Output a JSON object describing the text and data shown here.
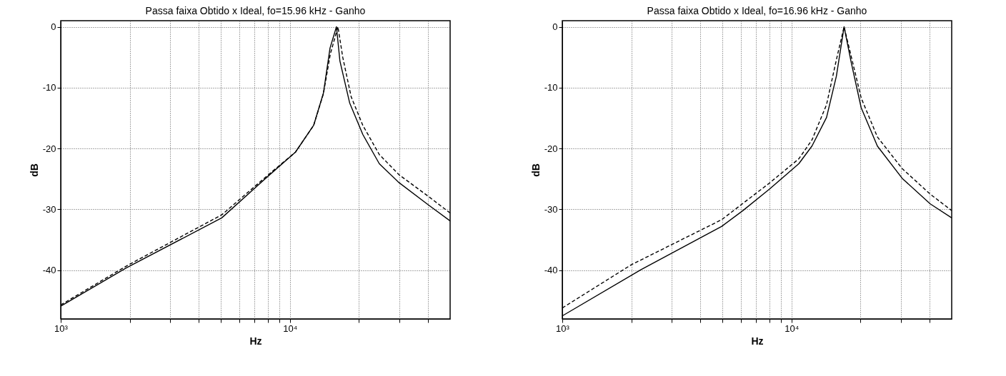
{
  "chart_data": [
    {
      "type": "line",
      "title": "Passa faixa  Obtido x Ideal, fo=15.96 kHz - Ganho",
      "xlabel": "Hz",
      "ylabel": "dB",
      "log": "x",
      "grid": true,
      "xlim": [
        1000,
        50000
      ],
      "ylim": [
        -48,
        1
      ],
      "xticks": [
        {
          "value": 1000,
          "label": "10³"
        },
        {
          "value": 2000,
          "label": null
        },
        {
          "value": 3000,
          "label": null
        },
        {
          "value": 4000,
          "label": null
        },
        {
          "value": 5000,
          "label": null
        },
        {
          "value": 6000,
          "label": null
        },
        {
          "value": 7000,
          "label": null
        },
        {
          "value": 8000,
          "label": null
        },
        {
          "value": 9000,
          "label": null
        },
        {
          "value": 10000,
          "label": "10⁴"
        },
        {
          "value": 20000,
          "label": null
        },
        {
          "value": 30000,
          "label": null
        },
        {
          "value": 40000,
          "label": null
        }
      ],
      "yticks": [
        0,
        -10,
        -20,
        -30,
        -40
      ],
      "series": [
        {
          "color": "#000000",
          "line_style": "solid",
          "x": [
            1000,
            1935,
            5040,
            8000,
            10570,
            12690,
            14000,
            14960,
            15960,
            16520,
            18220,
            20800,
            24550,
            29900,
            40300,
            50000
          ],
          "values": [
            -45.9,
            -39.6,
            -31.4,
            -24.6,
            -20.6,
            -16.2,
            -10.9,
            -3.5,
            0,
            -5.6,
            -12.5,
            -17.7,
            -22.5,
            -25.6,
            -29.3,
            -31.9
          ]
        },
        {
          "color": "#000000",
          "line_style": "dashed",
          "x": [
            1000,
            1935,
            5040,
            8000,
            10570,
            12690,
            14000,
            15000,
            16200,
            17000,
            18500,
            20800,
            24550,
            29900,
            40300,
            50000
          ],
          "values": [
            -45.7,
            -39.3,
            -30.9,
            -24.4,
            -20.6,
            -16.2,
            -11.0,
            -4.5,
            0,
            -5.0,
            -11.5,
            -16.2,
            -21.0,
            -24.3,
            -27.9,
            -30.6
          ]
        }
      ]
    },
    {
      "type": "line",
      "title": "Passa faixa  Obtido x Ideal, fo=16.96 kHz - Ganho",
      "xlabel": "Hz",
      "ylabel": "dB",
      "log": "x",
      "grid": true,
      "xlim": [
        1000,
        50000
      ],
      "ylim": [
        -48,
        1
      ],
      "xticks": [
        {
          "value": 1000,
          "label": "10³"
        },
        {
          "value": 2000,
          "label": null
        },
        {
          "value": 3000,
          "label": null
        },
        {
          "value": 4000,
          "label": null
        },
        {
          "value": 5000,
          "label": null
        },
        {
          "value": 6000,
          "label": null
        },
        {
          "value": 7000,
          "label": null
        },
        {
          "value": 8000,
          "label": null
        },
        {
          "value": 9000,
          "label": null
        },
        {
          "value": 10000,
          "label": "10⁴"
        },
        {
          "value": 20000,
          "label": null
        },
        {
          "value": 30000,
          "label": null
        },
        {
          "value": 40000,
          "label": null
        }
      ],
      "yticks": [
        0,
        -10,
        -20,
        -30,
        -40
      ],
      "series": [
        {
          "color": "#000000",
          "line_style": "solid",
          "x": [
            1000,
            2207,
            4955,
            6140,
            8000,
            10760,
            12280,
            14220,
            15700,
            16960,
            18230,
            20140,
            23700,
            30400,
            40300,
            50000
          ],
          "values": [
            -47.5,
            -39.9,
            -32.8,
            -30.2,
            -26.7,
            -22.5,
            -19.6,
            -14.9,
            -8.1,
            0,
            -5.9,
            -13.3,
            -19.6,
            -24.9,
            -29.1,
            -31.4
          ]
        },
        {
          "color": "#000000",
          "line_style": "dashed",
          "x": [
            1000,
            2000,
            4955,
            8000,
            10760,
            12280,
            14220,
            15700,
            16960,
            18230,
            20140,
            23700,
            30400,
            40300,
            50000
          ],
          "values": [
            -46.2,
            -39.1,
            -31.7,
            -25.7,
            -21.7,
            -18.6,
            -12.8,
            -5.4,
            0,
            -4.9,
            -11.7,
            -18.1,
            -23.3,
            -27.5,
            -30.2
          ]
        }
      ]
    }
  ]
}
